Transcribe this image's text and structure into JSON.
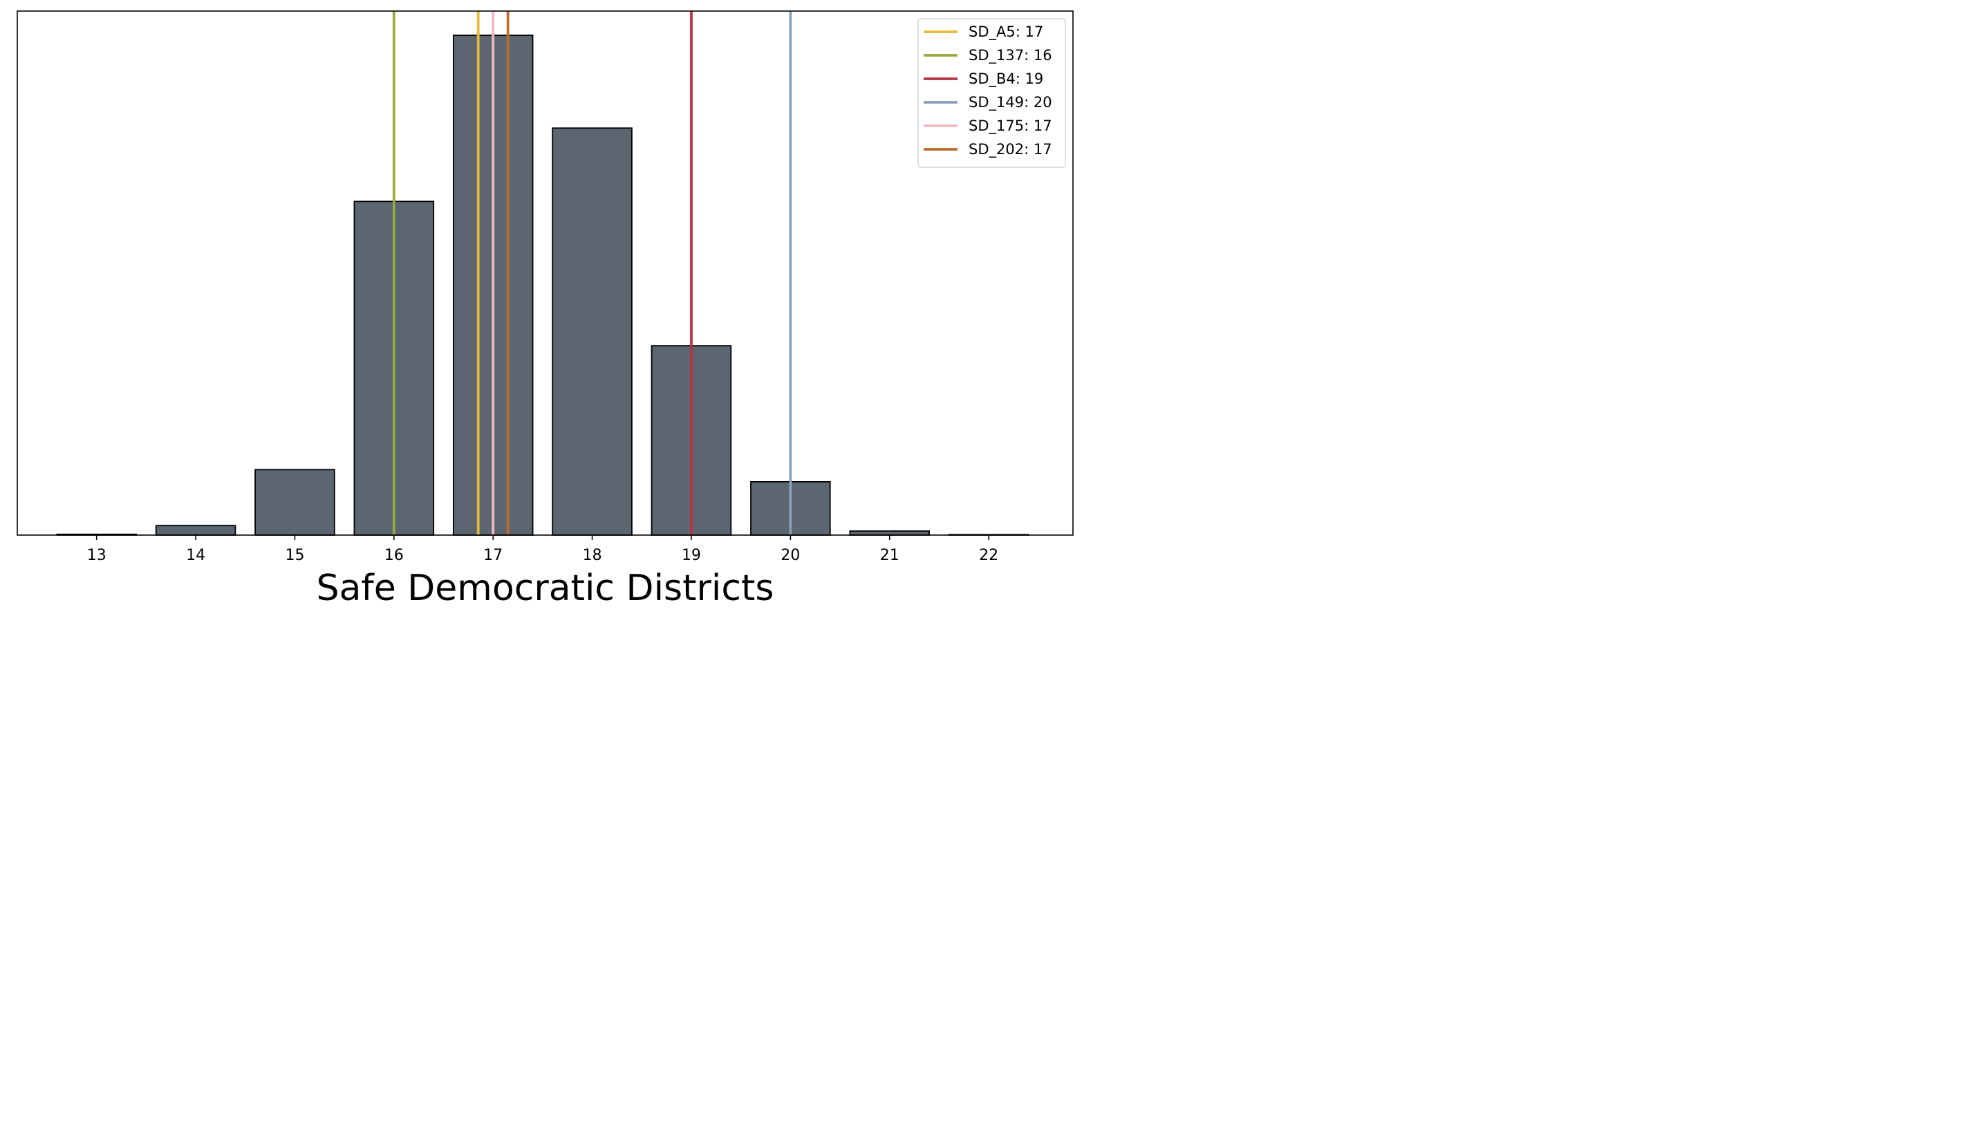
{
  "chart_data": {
    "type": "bar",
    "title": "",
    "xlabel": "Safe Democratic Districts",
    "ylabel": "",
    "categories": [
      "13",
      "14",
      "15",
      "16",
      "17",
      "18",
      "19",
      "20",
      "21",
      "22"
    ],
    "x": [
      13,
      14,
      15,
      16,
      17,
      18,
      19,
      20,
      21,
      22
    ],
    "values": [
      0.0015,
      0.0177,
      0.1218,
      0.6208,
      0.9299,
      0.7573,
      0.3523,
      0.0992,
      0.0075,
      0.0009
    ],
    "xlim": [
      12.2,
      22.85
    ],
    "ylim": [
      0,
      0.975
    ],
    "y_ticks_shown": false,
    "grid": false,
    "bar_color": "#5b6670",
    "bar_edge_color": "#000000",
    "reference_lines": [
      {
        "label": "SD_A5: 17",
        "x": 16.85,
        "color": "#e8b93a"
      },
      {
        "label": "SD_137: 16",
        "x": 16.0,
        "color": "#97ab3c"
      },
      {
        "label": "SD_B4: 19",
        "x": 19.0,
        "color": "#b83347"
      },
      {
        "label": "SD_149: 20",
        "x": 20.0,
        "color": "#8a9fbd"
      },
      {
        "label": "SD_175: 17",
        "x": 17.0,
        "color": "#f1b8c1"
      },
      {
        "label": "SD_202: 17",
        "x": 17.15,
        "color": "#bd6a2f"
      }
    ],
    "legend": {
      "position": "top-right"
    }
  }
}
